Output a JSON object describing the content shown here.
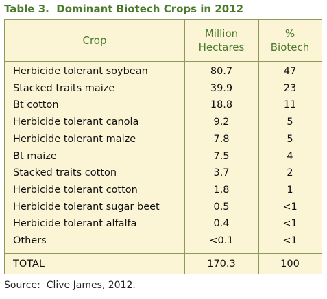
{
  "header": {
    "title": "Table 3.  Dominant Biotech Crops in 2012"
  },
  "table": {
    "columns": [
      "Crop",
      "Million\nHectares",
      "%\nBiotech"
    ],
    "rows": [
      [
        "Herbicide tolerant soybean",
        "80.7",
        "47"
      ],
      [
        "Stacked traits maize",
        "39.9",
        "23"
      ],
      [
        "Bt cotton",
        "18.8",
        "11"
      ],
      [
        "Herbicide tolerant canola",
        "9.2",
        "5"
      ],
      [
        "Herbicide tolerant maize",
        "7.8",
        "5"
      ],
      [
        "Bt maize",
        "7.5",
        "4"
      ],
      [
        "Stacked traits cotton",
        "3.7",
        "2"
      ],
      [
        "Herbicide tolerant cotton",
        "1.8",
        "1"
      ],
      [
        "Herbicide tolerant sugar beet",
        "0.5",
        "<1"
      ],
      [
        "Herbicide tolerant alfalfa",
        "0.4",
        "<1"
      ],
      [
        "Others",
        "<0.1",
        "<1"
      ]
    ],
    "total": [
      "TOTAL",
      "170.3",
      "100"
    ]
  },
  "footer": {
    "source": "Source:  Clive James, 2012."
  }
}
